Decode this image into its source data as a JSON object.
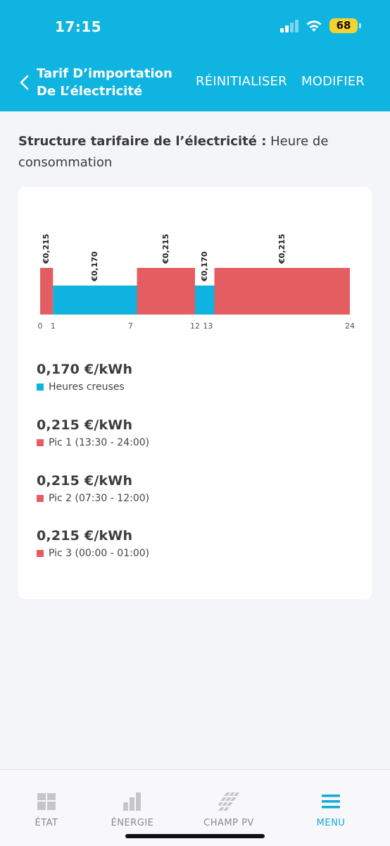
{
  "status_bar": {
    "time": "17:15",
    "battery": "68"
  },
  "nav": {
    "title": "Tarif D’importation De L’électricité",
    "reset_label": "RÉINITIALISER",
    "modify_label": "MODIFIER"
  },
  "structure": {
    "label": "Structure tarifaire de l’électricité :",
    "value": " Heure de consommation"
  },
  "colors": {
    "header": "#10b4e0",
    "offpeak": "#0fb3df",
    "peak": "#e45e61",
    "active_tab": "#12a9db"
  },
  "chart_data": {
    "type": "bar",
    "xlim": [
      0,
      24
    ],
    "x_ticks": [
      "0",
      "1",
      "7",
      "12",
      "13",
      "24"
    ],
    "segments": [
      {
        "start": 0,
        "end": 1,
        "price": 0.215,
        "label": "€0,215",
        "kind": "peak"
      },
      {
        "start": 1,
        "end": 7.5,
        "price": 0.17,
        "label": "€0,170",
        "kind": "offpeak"
      },
      {
        "start": 7.5,
        "end": 12,
        "price": 0.215,
        "label": "€0,215",
        "kind": "peak"
      },
      {
        "start": 12,
        "end": 13.5,
        "price": 0.17,
        "label": "€0,170",
        "kind": "offpeak"
      },
      {
        "start": 13.5,
        "end": 24,
        "price": 0.215,
        "label": "€0,215",
        "kind": "peak"
      }
    ]
  },
  "legend": [
    {
      "price": "0,170 €/kWh",
      "desc": "Heures creuses",
      "kind": "offpeak"
    },
    {
      "price": "0,215 €/kWh",
      "desc": "Pic 1 (13:30 - 24:00)",
      "kind": "peak"
    },
    {
      "price": "0,215 €/kWh",
      "desc": "Pic 2 (07:30 - 12:00)",
      "kind": "peak"
    },
    {
      "price": "0,215 €/kWh",
      "desc": "Pic 3 (00:00 - 01:00)",
      "kind": "peak"
    }
  ],
  "tabs": [
    {
      "label": "ÉTAT",
      "icon": "grid-icon"
    },
    {
      "label": "ÉNERGIE",
      "icon": "bar-chart-icon"
    },
    {
      "label": "CHAMP PV",
      "icon": "solar-panel-icon"
    },
    {
      "label": "MENU",
      "icon": "menu-icon",
      "active": true
    }
  ]
}
